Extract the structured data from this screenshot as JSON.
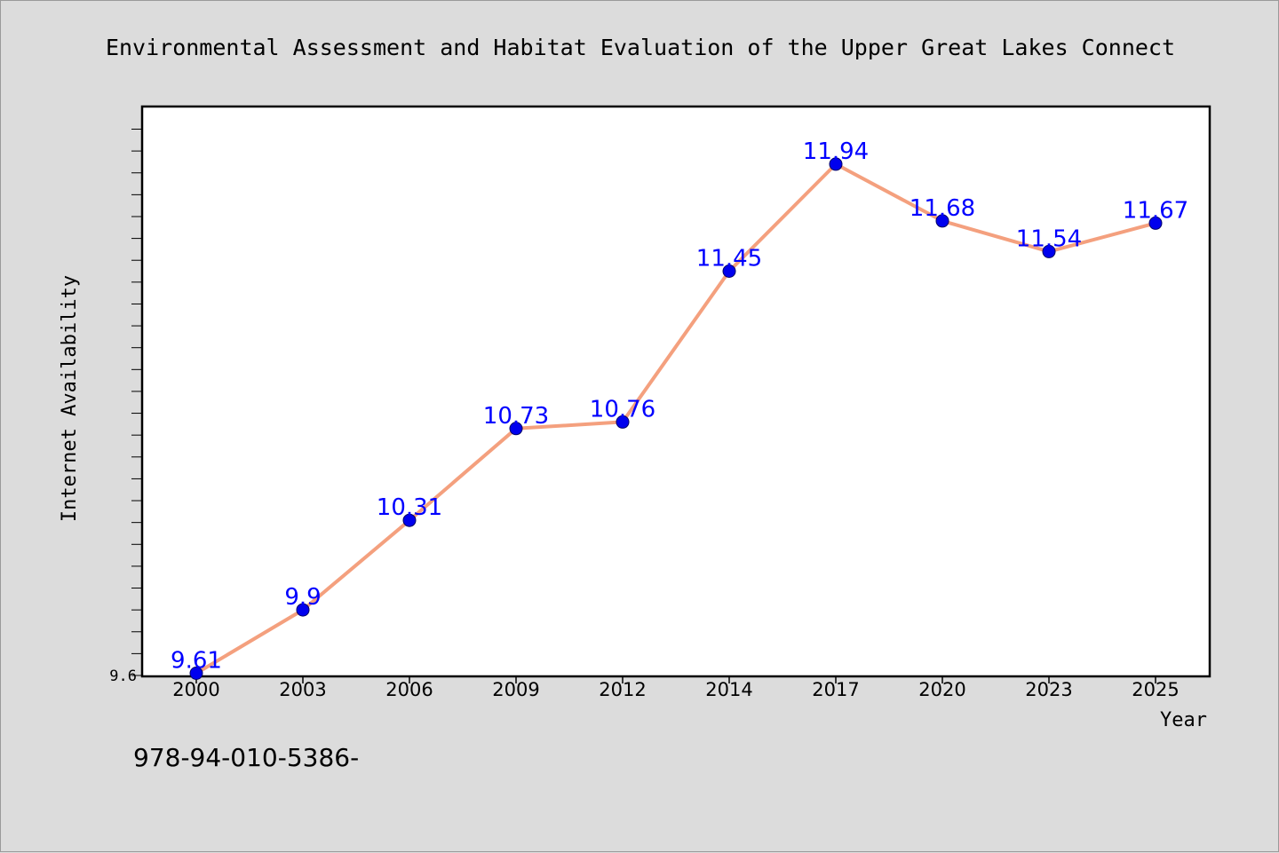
{
  "chart_data": {
    "type": "line",
    "title": "Environmental Assessment and Habitat Evaluation of the Upper Great Lakes Connect",
    "xlabel": "Year",
    "ylabel": "Internet Availability",
    "categories": [
      "2000",
      "2003",
      "2006",
      "2009",
      "2012",
      "2014",
      "2017",
      "2020",
      "2023",
      "2025"
    ],
    "series": [
      {
        "values": [
          9.61,
          9.9,
          10.31,
          10.73,
          10.76,
          11.45,
          11.94,
          11.68,
          11.54,
          11.67
        ]
      }
    ],
    "data_labels": [
      "9.61",
      "9.9",
      "10.31",
      "10.73",
      "10.76",
      "11.45",
      "11.94",
      "11.68",
      "11.54",
      "11.67"
    ],
    "ylim": [
      9.6,
      12.2
    ],
    "yticks": [
      "9.6"
    ],
    "grid": false,
    "legend": "none",
    "colors": {
      "line": "#f4a07e",
      "marker": "#0000ee",
      "label": "#0000ff"
    }
  },
  "footer_text": "978-94-010-5386-"
}
